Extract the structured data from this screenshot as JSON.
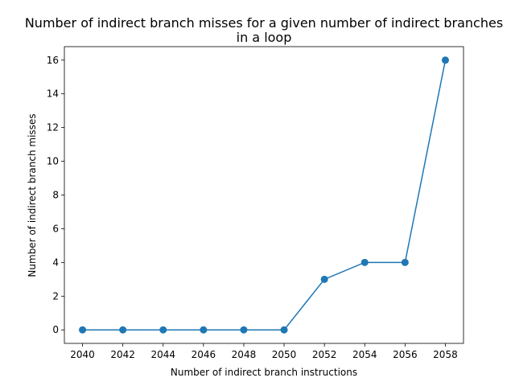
{
  "chart_data": {
    "type": "line",
    "title_line1": "Number of indirect branch misses for a given number of indirect branches",
    "title_line2": "in a loop",
    "xlabel": "Number of indirect branch instructions",
    "ylabel": "Number of indirect branch misses",
    "x": [
      2040,
      2042,
      2044,
      2046,
      2048,
      2050,
      2052,
      2054,
      2056,
      2058
    ],
    "y": [
      0,
      0,
      0,
      0,
      0,
      0,
      3,
      4,
      4,
      16
    ],
    "xticks": [
      "2040",
      "2042",
      "2044",
      "2046",
      "2048",
      "2050",
      "2052",
      "2054",
      "2056",
      "2058"
    ],
    "yticks": [
      "0",
      "2",
      "4",
      "6",
      "8",
      "10",
      "12",
      "14",
      "16"
    ],
    "xlim": [
      2039.1,
      2058.9
    ],
    "ylim": [
      -0.8,
      16.8
    ],
    "grid": false,
    "legend": "none",
    "series_color": "#1f77b4",
    "marker": "circle"
  }
}
